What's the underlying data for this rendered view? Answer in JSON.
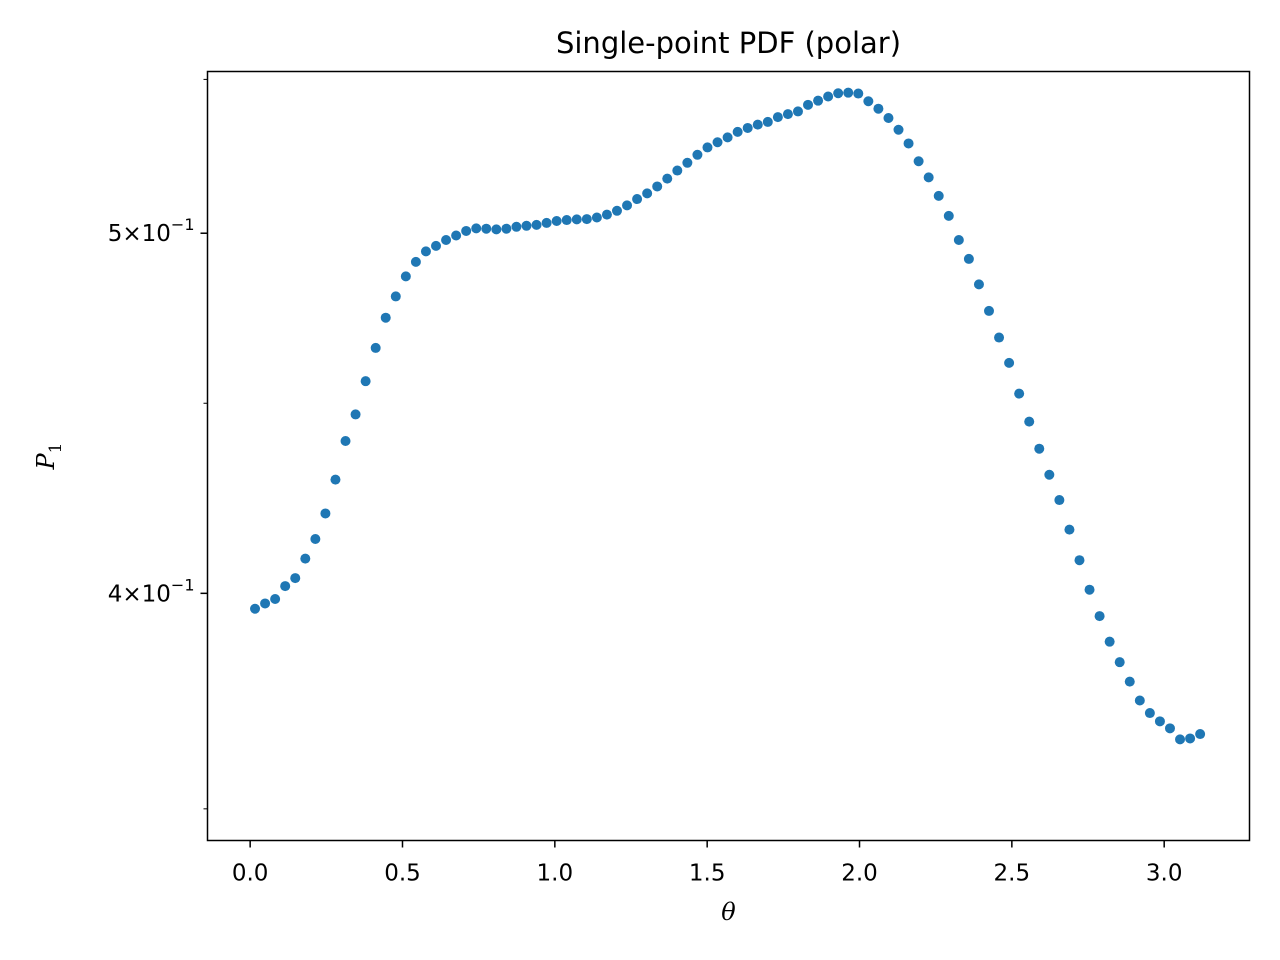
{
  "chart_data": {
    "type": "scatter",
    "title": "Single-point PDF (polar)",
    "xlabel": "θ",
    "ylabel": "P",
    "ylabel_subscript": "1",
    "yscale": "log",
    "xlim": [
      -0.14,
      3.28
    ],
    "ylim": [
      0.3432,
      0.5527
    ],
    "grid": false,
    "x_ticks": [
      0.0,
      0.5,
      1.0,
      1.5,
      2.0,
      2.5,
      3.0
    ],
    "x_tick_labels": [
      "0.0",
      "0.5",
      "1.0",
      "1.5",
      "2.0",
      "2.5",
      "3.0"
    ],
    "y_ticks": [
      {
        "value": 0.4,
        "mantissa": "4",
        "exponent": "−1"
      },
      {
        "value": 0.5,
        "mantissa": "5",
        "exponent": "−1"
      }
    ],
    "marker_color": "#1f77b4",
    "series": [
      {
        "x": [
          0.016,
          0.049,
          0.082,
          0.115,
          0.148,
          0.181,
          0.214,
          0.247,
          0.28,
          0.313,
          0.346,
          0.379,
          0.412,
          0.445,
          0.478,
          0.511,
          0.544,
          0.577,
          0.61,
          0.643,
          0.676,
          0.709,
          0.742,
          0.775,
          0.808,
          0.841,
          0.874,
          0.907,
          0.94,
          0.973,
          1.006,
          1.039,
          1.072,
          1.105,
          1.138,
          1.171,
          1.204,
          1.237,
          1.27,
          1.303,
          1.336,
          1.369,
          1.402,
          1.435,
          1.468,
          1.501,
          1.534,
          1.567,
          1.6,
          1.633,
          1.666,
          1.699,
          1.732,
          1.765,
          1.798,
          1.831,
          1.864,
          1.897,
          1.93,
          1.963,
          1.996,
          2.029,
          2.062,
          2.095,
          2.128,
          2.161,
          2.194,
          2.227,
          2.26,
          2.293,
          2.326,
          2.359,
          2.392,
          2.425,
          2.458,
          2.491,
          2.524,
          2.557,
          2.59,
          2.623,
          2.656,
          2.689,
          2.722,
          2.755,
          2.788,
          2.821,
          2.854,
          2.887,
          2.92,
          2.953,
          2.986,
          3.019,
          3.052,
          3.085,
          3.118
        ],
        "y": [
          0.3962,
          0.3975,
          0.3986,
          0.4018,
          0.4038,
          0.4087,
          0.4137,
          0.4203,
          0.4292,
          0.4396,
          0.4469,
          0.4562,
          0.4657,
          0.4745,
          0.4808,
          0.4868,
          0.4912,
          0.4944,
          0.4961,
          0.4979,
          0.4993,
          0.5007,
          0.5015,
          0.5014,
          0.5012,
          0.5014,
          0.502,
          0.5023,
          0.5026,
          0.5032,
          0.5038,
          0.5041,
          0.5043,
          0.5044,
          0.5049,
          0.5058,
          0.507,
          0.5087,
          0.5107,
          0.5125,
          0.5147,
          0.5172,
          0.5198,
          0.5223,
          0.5249,
          0.5273,
          0.529,
          0.5306,
          0.5324,
          0.5337,
          0.5348,
          0.5357,
          0.5373,
          0.5383,
          0.5392,
          0.5414,
          0.5428,
          0.5442,
          0.5453,
          0.5455,
          0.5452,
          0.5426,
          0.5401,
          0.537,
          0.5331,
          0.5286,
          0.5228,
          0.5176,
          0.5117,
          0.5054,
          0.4979,
          0.4921,
          0.4844,
          0.4765,
          0.4687,
          0.4614,
          0.4527,
          0.4449,
          0.4375,
          0.4305,
          0.4238,
          0.4161,
          0.4083,
          0.4009,
          0.3944,
          0.3882,
          0.3833,
          0.3787,
          0.3743,
          0.3714,
          0.3695,
          0.3679,
          0.3654,
          0.3656,
          0.3666
        ]
      }
    ]
  }
}
